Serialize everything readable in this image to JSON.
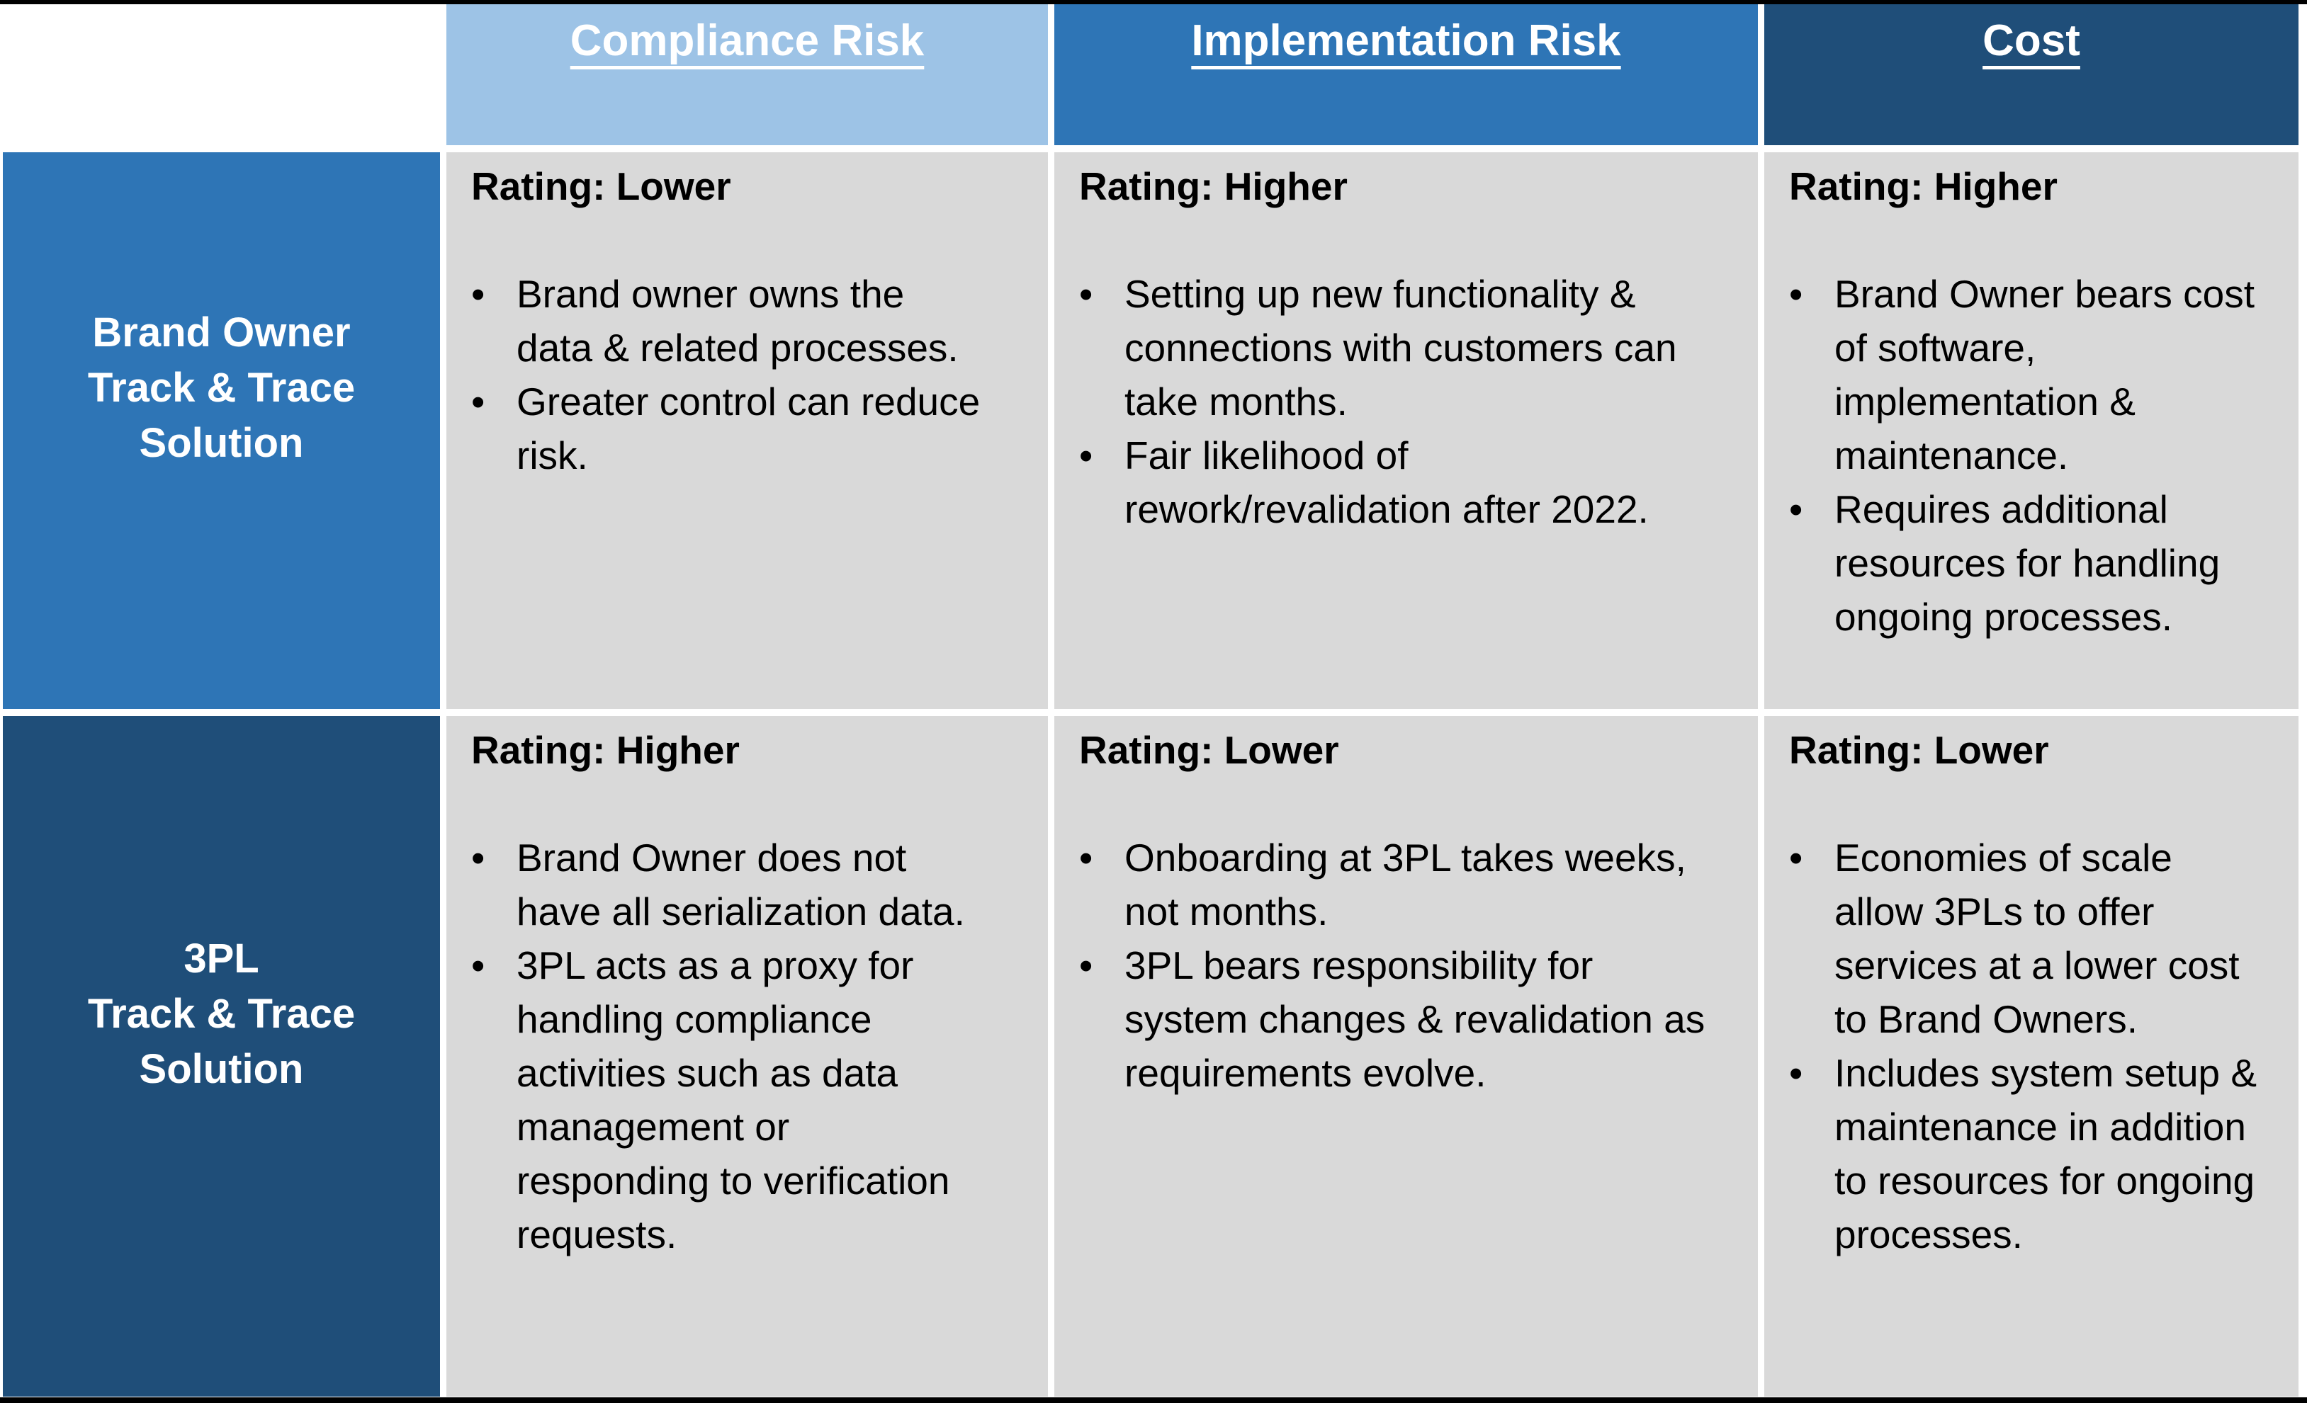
{
  "bullet_char": "•",
  "colors": {
    "light_blue": "#9DC3E6",
    "medium_blue": "#2E75B6",
    "dark_blue": "#1F4E79",
    "cell_gray": "#D9D9D9",
    "bar_black": "#000000",
    "head_text": "#FFFFFF",
    "body_text": "#000000"
  },
  "table": {
    "columns": [
      {
        "label": "Compliance Risk"
      },
      {
        "label": "Implementation Risk"
      },
      {
        "label": "Cost"
      }
    ],
    "rows": [
      {
        "label_lines": [
          "Brand Owner",
          "Track & Trace",
          "Solution"
        ],
        "cells": [
          {
            "rating": "Rating: Lower",
            "bullets": [
              "Brand owner owns the\ndata & related processes.",
              "Greater control can reduce\nrisk."
            ]
          },
          {
            "rating": "Rating: Higher",
            "bullets": [
              "Setting up new functionality &\nconnections with customers can\ntake months.",
              "Fair likelihood of\nrework/revalidation after 2022."
            ]
          },
          {
            "rating": "Rating: Higher",
            "bullets": [
              "Brand Owner bears cost\nof software,\nimplementation &\nmaintenance.",
              "Requires additional\nresources for handling\nongoing processes."
            ]
          }
        ]
      },
      {
        "label_lines": [
          "3PL",
          "Track & Trace",
          "Solution"
        ],
        "cells": [
          {
            "rating": "Rating: Higher",
            "bullets": [
              "Brand Owner does not\nhave all serialization data.",
              "3PL acts as a proxy for\nhandling compliance\nactivities such as data\nmanagement or\nresponding to verification\nrequests."
            ]
          },
          {
            "rating": "Rating: Lower",
            "bullets": [
              "Onboarding at 3PL takes weeks,\nnot months.",
              "3PL bears responsibility for\nsystem changes & revalidation as\nrequirements evolve."
            ]
          },
          {
            "rating": "Rating: Lower",
            "bullets": [
              "Economies of scale\nallow 3PLs to offer\nservices at a lower cost\nto Brand Owners.",
              "Includes system setup &\nmaintenance in addition\nto resources for ongoing\nprocesses."
            ]
          }
        ]
      }
    ]
  }
}
